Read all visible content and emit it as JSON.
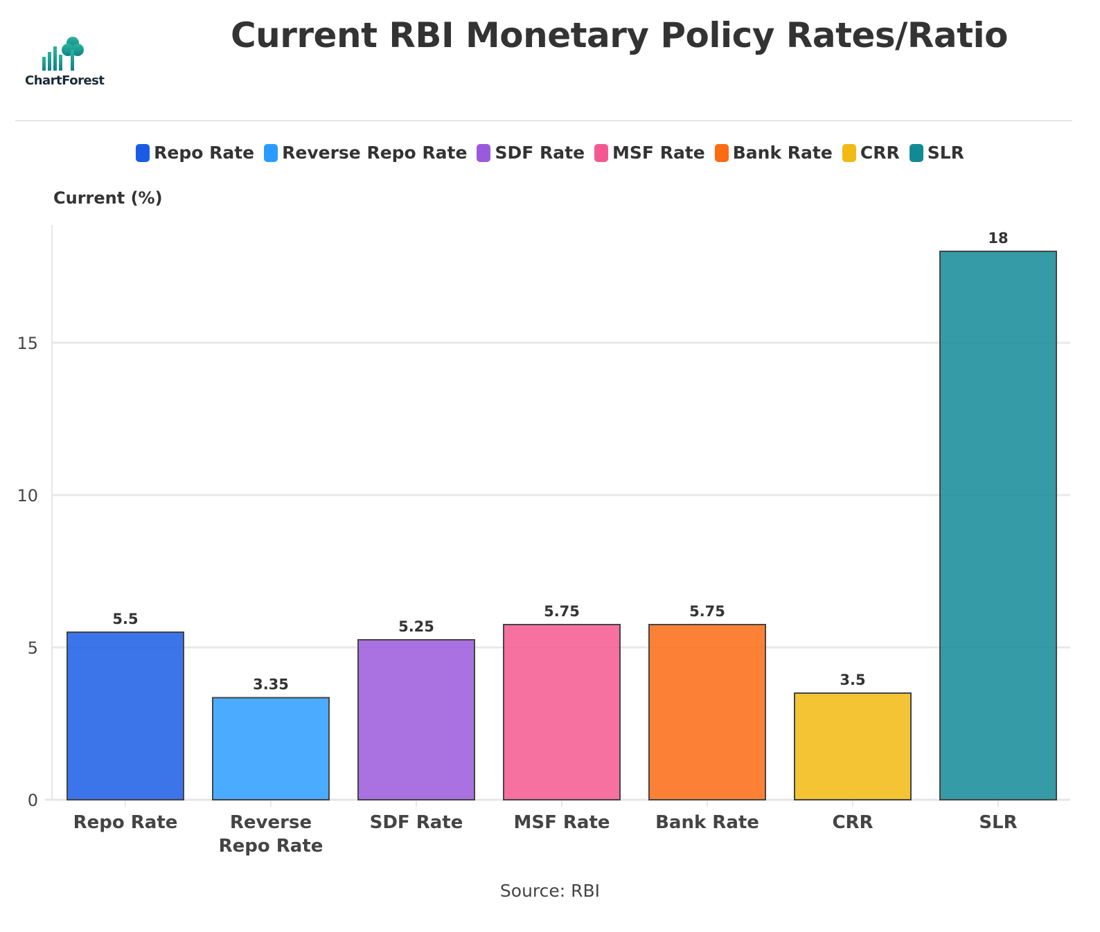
{
  "header": {
    "title": "Current RBI Monetary Policy Rates/Ratio",
    "logo_text": "ChartForest"
  },
  "footer": {
    "source": "Source: RBI"
  },
  "chart_data": {
    "type": "bar",
    "title": "Current RBI Monetary Policy Rates/Ratio",
    "xlabel": "",
    "ylabel": "Current (%)",
    "ylim": [
      0,
      19
    ],
    "yticks": [
      0,
      5,
      10,
      15
    ],
    "grid": true,
    "legend": "top",
    "categories": [
      "Repo Rate",
      "Reverse Repo Rate",
      "SDF Rate",
      "MSF Rate",
      "Bank Rate",
      "CRR",
      "SLR"
    ],
    "category_labels": [
      [
        "Repo Rate"
      ],
      [
        "Reverse",
        "Repo Rate"
      ],
      [
        "SDF Rate"
      ],
      [
        "MSF Rate"
      ],
      [
        "Bank Rate"
      ],
      [
        "CRR"
      ],
      [
        "SLR"
      ]
    ],
    "values": [
      5.5,
      3.35,
      5.25,
      5.75,
      5.75,
      3.5,
      18
    ],
    "data_labels": [
      "5.5",
      "3.35",
      "5.25",
      "5.75",
      "5.75",
      "3.5",
      "18"
    ],
    "colors": [
      "#1a5ce6",
      "#2b9cff",
      "#9b59dc",
      "#f5588f",
      "#fb6b14",
      "#f2ba12",
      "#128a96"
    ]
  }
}
